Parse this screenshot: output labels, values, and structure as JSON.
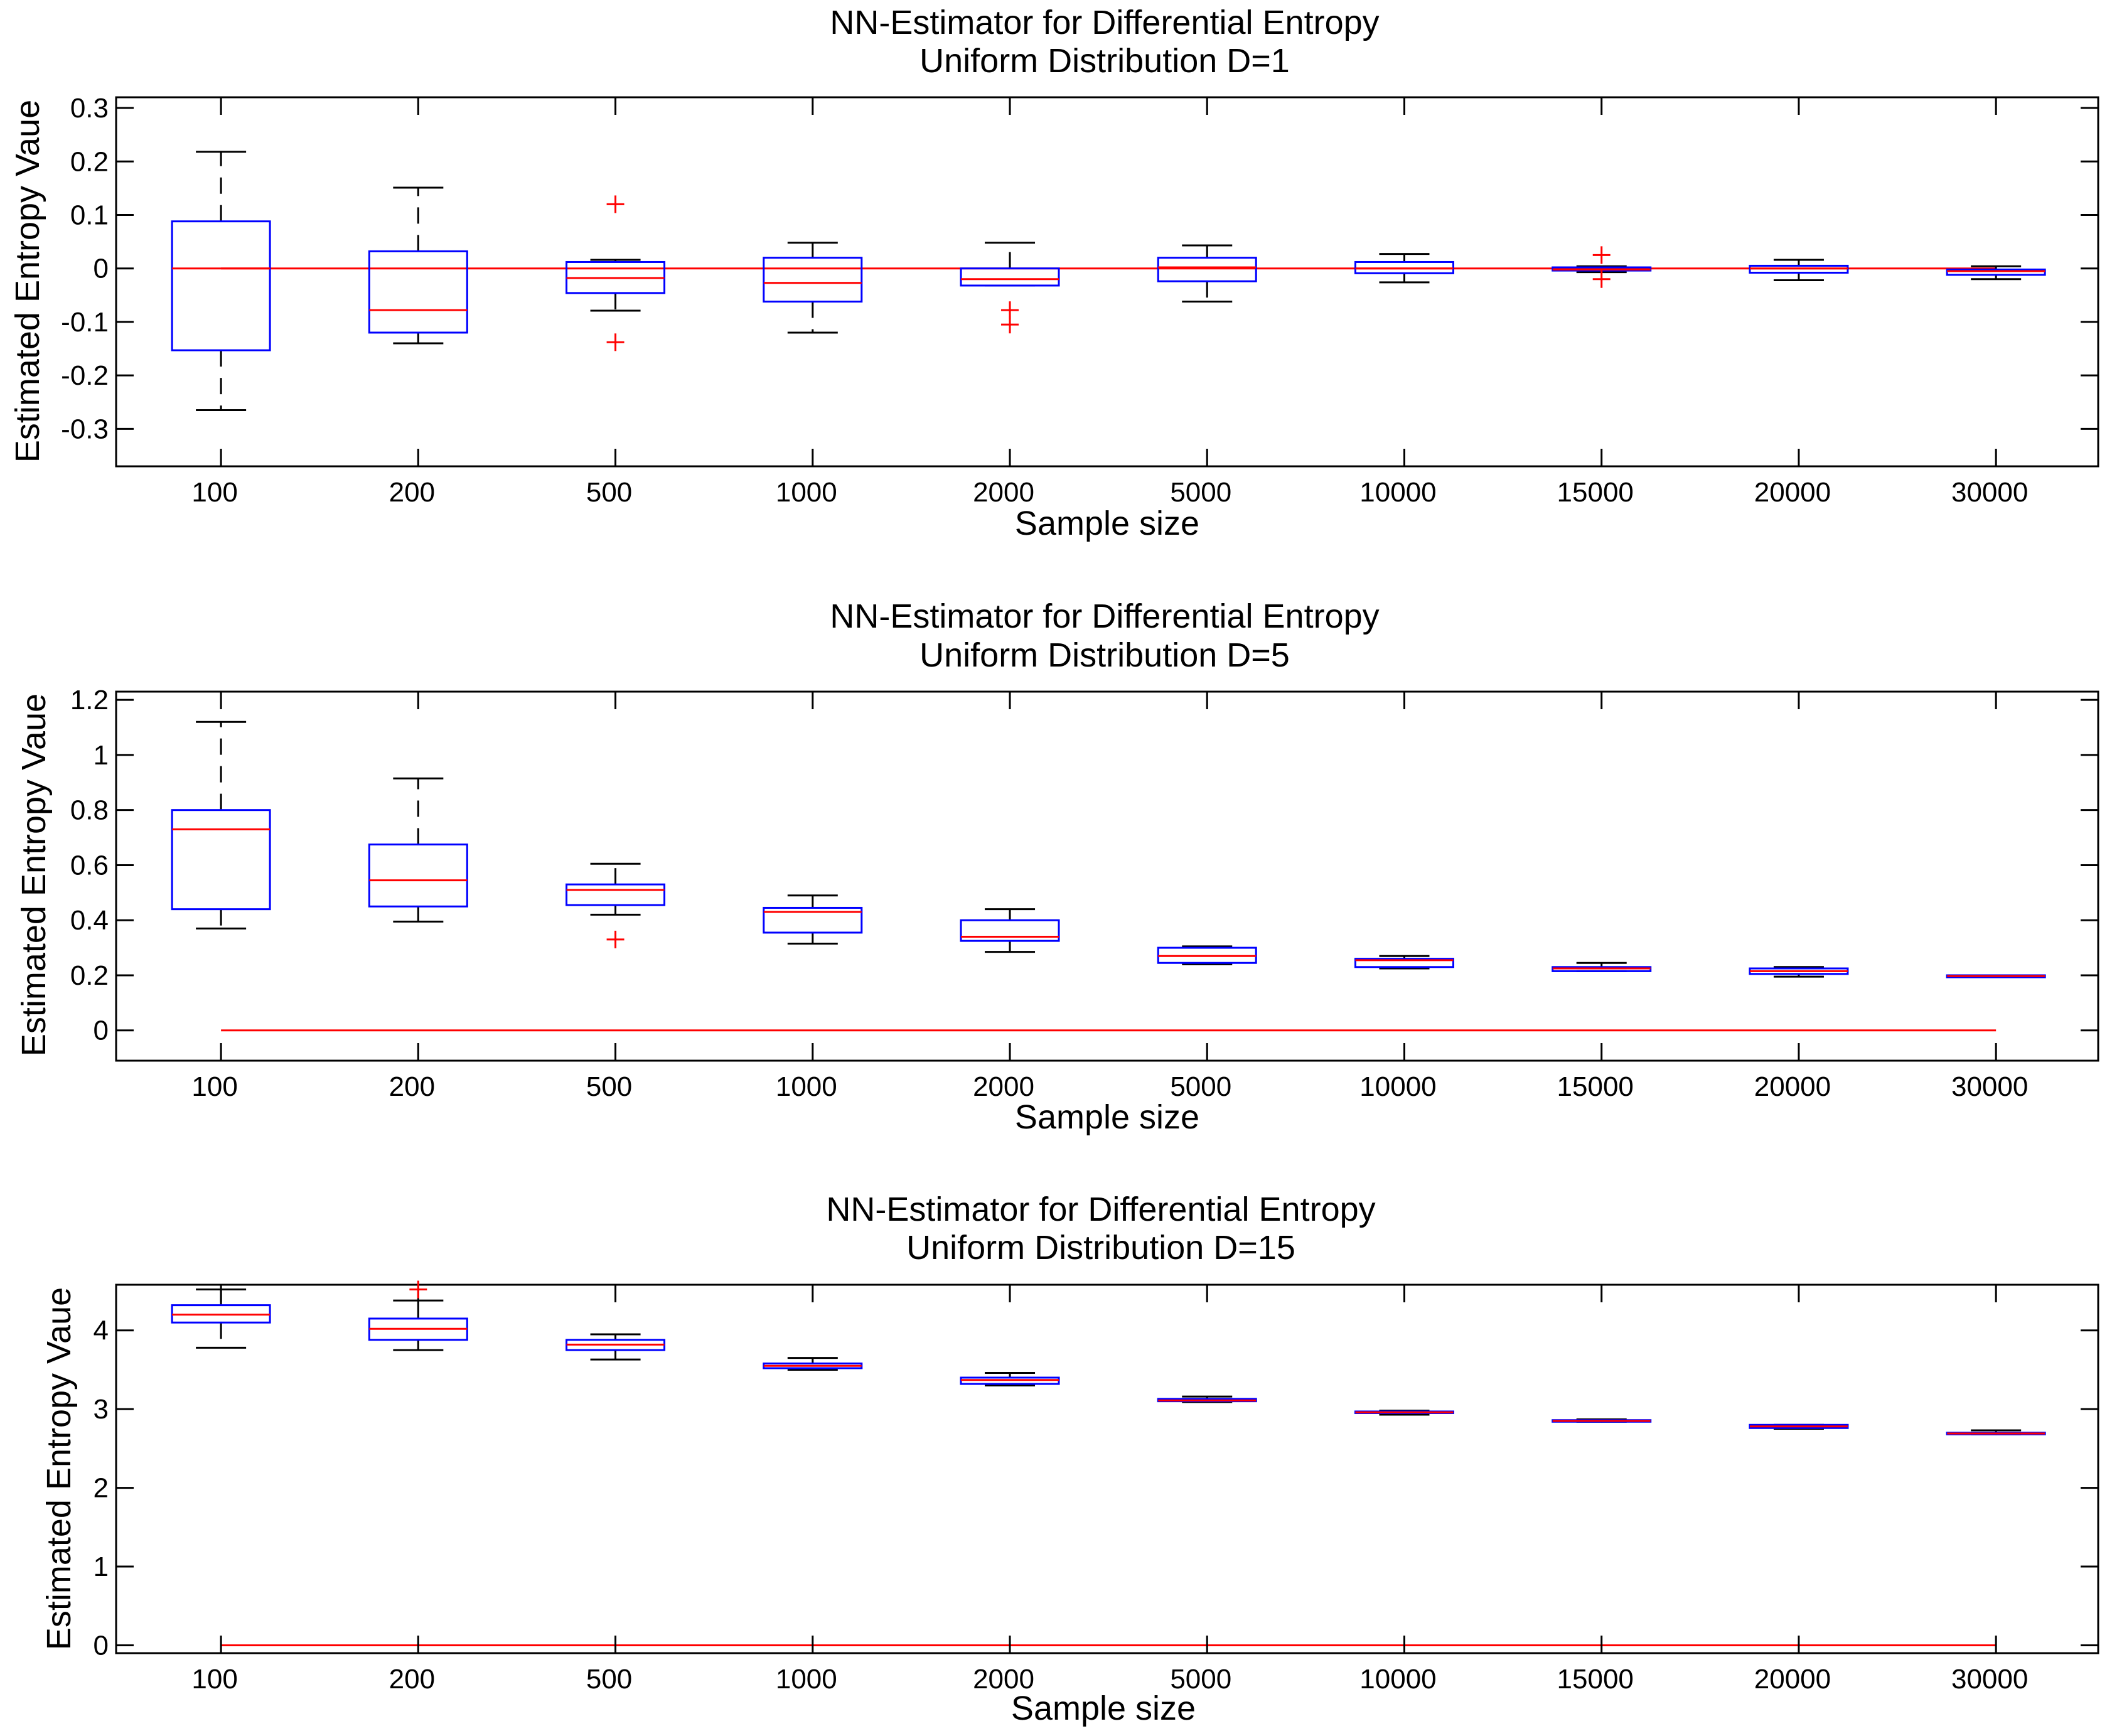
{
  "colors": {
    "box": "#0000ff",
    "median": "#ff0000",
    "whisker": "#000000",
    "outlier": "#ff0000",
    "reference": "#ff0000",
    "axes": "#000000"
  },
  "chart_data": [
    {
      "type": "box",
      "title": "NN-Estimator for Differential Entropy",
      "subtitle": "Uniform Distribution D=1",
      "xlabel": "Sample size",
      "ylabel": "Estimated Entropy Vaue",
      "ylim": [
        -0.37,
        0.32
      ],
      "yticks": [
        -0.3,
        -0.2,
        -0.1,
        0,
        0.1,
        0.2,
        0.3
      ],
      "ytick_labels": [
        "-0.3",
        "-0.2",
        "-0.1",
        "0",
        "0.1",
        "0.2",
        "0.3"
      ],
      "categories": [
        "100",
        "200",
        "500",
        "1000",
        "2000",
        "5000",
        "10000",
        "15000",
        "20000",
        "30000"
      ],
      "reference_line": 0,
      "boxes": [
        {
          "lw": -0.265,
          "q1": -0.153,
          "median": 0.0,
          "q3": 0.088,
          "uw": 0.218,
          "outliers": []
        },
        {
          "lw": -0.14,
          "q1": -0.12,
          "median": -0.078,
          "q3": 0.032,
          "uw": 0.151,
          "outliers": []
        },
        {
          "lw": -0.079,
          "q1": -0.046,
          "median": -0.018,
          "q3": 0.012,
          "uw": 0.016,
          "outliers": [
            0.12,
            -0.138
          ]
        },
        {
          "lw": -0.12,
          "q1": -0.062,
          "median": -0.027,
          "q3": 0.02,
          "uw": 0.048,
          "outliers": []
        },
        {
          "lw": -0.032,
          "q1": -0.032,
          "median": -0.02,
          "q3": 0.0,
          "uw": 0.048,
          "outliers": [
            -0.078,
            -0.105
          ]
        },
        {
          "lw": -0.062,
          "q1": -0.024,
          "median": 0.002,
          "q3": 0.02,
          "uw": 0.043,
          "outliers": []
        },
        {
          "lw": -0.026,
          "q1": -0.009,
          "median": 0.0,
          "q3": 0.012,
          "uw": 0.027,
          "outliers": []
        },
        {
          "lw": -0.007,
          "q1": -0.004,
          "median": -0.002,
          "q3": 0.002,
          "uw": 0.004,
          "outliers": [
            0.025,
            -0.02
          ]
        },
        {
          "lw": -0.022,
          "q1": -0.008,
          "median": 0.0,
          "q3": 0.005,
          "uw": 0.016,
          "outliers": []
        },
        {
          "lw": -0.02,
          "q1": -0.012,
          "median": -0.005,
          "q3": -0.002,
          "uw": 0.004,
          "outliers": []
        }
      ]
    },
    {
      "type": "box",
      "title": "NN-Estimator for Differential Entropy",
      "subtitle": "Uniform Distribution D=5",
      "xlabel": "Sample size",
      "ylabel": "Estimated Entropy Vaue",
      "ylim": [
        -0.11,
        1.23
      ],
      "yticks": [
        0,
        0.2,
        0.4,
        0.6,
        0.8,
        1,
        1.2
      ],
      "ytick_labels": [
        "0",
        "0.2",
        "0.4",
        "0.6",
        "0.8",
        "1",
        "1.2"
      ],
      "categories": [
        "100",
        "200",
        "500",
        "1000",
        "2000",
        "5000",
        "10000",
        "15000",
        "20000",
        "30000"
      ],
      "reference_line": 0,
      "boxes": [
        {
          "lw": 0.37,
          "q1": 0.44,
          "median": 0.73,
          "q3": 0.8,
          "uw": 1.12,
          "outliers": []
        },
        {
          "lw": 0.395,
          "q1": 0.45,
          "median": 0.545,
          "q3": 0.675,
          "uw": 0.915,
          "outliers": []
        },
        {
          "lw": 0.42,
          "q1": 0.455,
          "median": 0.51,
          "q3": 0.53,
          "uw": 0.605,
          "outliers": [
            0.33
          ]
        },
        {
          "lw": 0.315,
          "q1": 0.355,
          "median": 0.43,
          "q3": 0.445,
          "uw": 0.49,
          "outliers": []
        },
        {
          "lw": 0.285,
          "q1": 0.325,
          "median": 0.34,
          "q3": 0.4,
          "uw": 0.44,
          "outliers": []
        },
        {
          "lw": 0.24,
          "q1": 0.245,
          "median": 0.27,
          "q3": 0.3,
          "uw": 0.305,
          "outliers": []
        },
        {
          "lw": 0.225,
          "q1": 0.23,
          "median": 0.255,
          "q3": 0.26,
          "uw": 0.27,
          "outliers": []
        },
        {
          "lw": 0.215,
          "q1": 0.215,
          "median": 0.225,
          "q3": 0.23,
          "uw": 0.245,
          "outliers": []
        },
        {
          "lw": 0.195,
          "q1": 0.205,
          "median": 0.215,
          "q3": 0.225,
          "uw": 0.23,
          "outliers": []
        },
        {
          "lw": 0.193,
          "q1": 0.193,
          "median": 0.197,
          "q3": 0.2,
          "uw": 0.2,
          "outliers": []
        }
      ]
    },
    {
      "type": "box",
      "title": "NN-Estimator for Differential Entropy",
      "subtitle": "Uniform Distribution D=15",
      "xlabel": "Sample size",
      "ylabel": "Estimated Entropy Vaue",
      "ylim": [
        -0.1,
        4.58
      ],
      "yticks": [
        0,
        1,
        2,
        3,
        4
      ],
      "ytick_labels": [
        "0",
        "1",
        "2",
        "3",
        "4"
      ],
      "categories": [
        "100",
        "200",
        "500",
        "1000",
        "2000",
        "5000",
        "10000",
        "15000",
        "20000",
        "30000"
      ],
      "reference_line": 0,
      "boxes": [
        {
          "lw": 3.78,
          "q1": 4.1,
          "median": 4.2,
          "q3": 4.32,
          "uw": 4.52,
          "outliers": []
        },
        {
          "lw": 3.75,
          "q1": 3.88,
          "median": 4.02,
          "q3": 4.15,
          "uw": 4.38,
          "outliers": [
            4.52
          ]
        },
        {
          "lw": 3.63,
          "q1": 3.75,
          "median": 3.82,
          "q3": 3.88,
          "uw": 3.95,
          "outliers": []
        },
        {
          "lw": 3.5,
          "q1": 3.52,
          "median": 3.55,
          "q3": 3.58,
          "uw": 3.65,
          "outliers": []
        },
        {
          "lw": 3.3,
          "q1": 3.32,
          "median": 3.37,
          "q3": 3.4,
          "uw": 3.46,
          "outliers": []
        },
        {
          "lw": 3.09,
          "q1": 3.1,
          "median": 3.11,
          "q3": 3.13,
          "uw": 3.16,
          "outliers": []
        },
        {
          "lw": 2.93,
          "q1": 2.95,
          "median": 2.96,
          "q3": 2.97,
          "uw": 2.98,
          "outliers": []
        },
        {
          "lw": 2.84,
          "q1": 2.84,
          "median": 2.85,
          "q3": 2.86,
          "uw": 2.87,
          "outliers": []
        },
        {
          "lw": 2.75,
          "q1": 2.76,
          "median": 2.78,
          "q3": 2.8,
          "uw": 2.8,
          "outliers": []
        },
        {
          "lw": 2.68,
          "q1": 2.68,
          "median": 2.69,
          "q3": 2.7,
          "uw": 2.73,
          "outliers": []
        }
      ]
    }
  ]
}
